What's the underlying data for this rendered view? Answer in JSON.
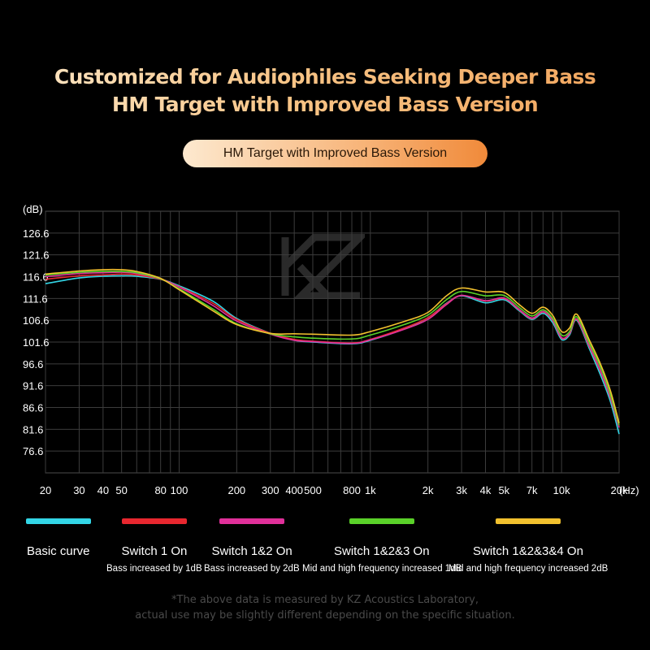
{
  "headline": {
    "line1": "Customized for Audiophiles Seeking Deeper Bass",
    "line2": "HM Target with Improved Bass Version"
  },
  "pill_label": "HM Target with Improved Bass Version",
  "chart_data": {
    "type": "line",
    "title": "",
    "ylabel": "(dB)",
    "xlabel": "(Hz)",
    "x_scale": "log",
    "xlim": [
      20,
      20000
    ],
    "ylim": [
      71.6,
      131.6
    ],
    "grid": true,
    "y_ticks": [
      "126.6",
      "121.6",
      "116.6",
      "111.6",
      "106.6",
      "101.6",
      "96.6",
      "91.6",
      "86.6",
      "81.6",
      "76.6"
    ],
    "y_tick_values": [
      126.6,
      121.6,
      116.6,
      111.6,
      106.6,
      101.6,
      96.6,
      91.6,
      86.6,
      81.6,
      76.6
    ],
    "x_ticks": [
      "20",
      "30",
      "40",
      "50",
      "80",
      "100",
      "200",
      "300",
      "400",
      "500",
      "800",
      "1k",
      "2k",
      "3k",
      "4k",
      "5k",
      "7k",
      "10k",
      "20k"
    ],
    "x_tick_values": [
      20,
      30,
      40,
      50,
      80,
      100,
      200,
      300,
      400,
      500,
      800,
      1000,
      2000,
      3000,
      4000,
      5000,
      7000,
      10000,
      20000
    ],
    "x": [
      20,
      30,
      40,
      50,
      60,
      80,
      100,
      150,
      200,
      300,
      400,
      500,
      800,
      1000,
      1500,
      2000,
      2500,
      3000,
      4000,
      5000,
      6000,
      7000,
      8000,
      9000,
      10000,
      11000,
      12000,
      14000,
      16000,
      18000,
      20000
    ],
    "series": [
      {
        "color": "#33d6e6",
        "values": [
          115.0,
          116.3,
          116.7,
          116.8,
          116.7,
          116.0,
          114.5,
          111.0,
          107.0,
          103.6,
          102.0,
          101.6,
          101.2,
          102.0,
          104.6,
          107.2,
          110.5,
          112.2,
          110.6,
          111.3,
          108.8,
          106.8,
          108.2,
          106.0,
          102.2,
          103.2,
          106.6,
          100.0,
          94.0,
          88.0,
          80.5
        ]
      },
      {
        "color": "#e8272f",
        "values": [
          116.0,
          116.8,
          117.0,
          117.2,
          117.0,
          116.0,
          114.3,
          110.5,
          106.8,
          103.6,
          102.2,
          101.8,
          101.4,
          102.2,
          104.8,
          107.2,
          110.4,
          112.3,
          111.0,
          111.6,
          109.0,
          107.0,
          108.5,
          106.5,
          102.5,
          103.5,
          106.8,
          100.5,
          94.8,
          88.8,
          82.0
        ]
      },
      {
        "color": "#e0309a",
        "values": [
          116.6,
          117.3,
          117.5,
          117.6,
          117.3,
          116.1,
          114.2,
          110.0,
          106.4,
          103.4,
          102.0,
          101.7,
          101.3,
          102.1,
          104.5,
          106.8,
          110.2,
          112.3,
          111.1,
          111.7,
          109.1,
          107.1,
          108.6,
          106.6,
          102.6,
          103.6,
          106.9,
          100.7,
          95.0,
          89.0,
          82.0
        ]
      },
      {
        "color": "#5ad129",
        "values": [
          117.0,
          117.6,
          117.8,
          117.8,
          117.5,
          116.1,
          113.8,
          109.2,
          105.8,
          103.5,
          102.8,
          102.5,
          102.3,
          103.2,
          105.6,
          107.8,
          111.3,
          113.2,
          112.2,
          112.3,
          109.6,
          107.6,
          109.0,
          107.0,
          103.2,
          104.0,
          107.4,
          101.3,
          95.8,
          89.6,
          82.5
        ]
      },
      {
        "color": "#f2c12e",
        "values": [
          117.2,
          117.9,
          118.2,
          118.2,
          117.8,
          116.2,
          113.6,
          108.8,
          105.6,
          103.6,
          103.5,
          103.4,
          103.2,
          104.0,
          106.3,
          108.4,
          112.2,
          114.0,
          113.1,
          113.0,
          110.2,
          108.2,
          109.6,
          107.7,
          104.0,
          104.8,
          108.0,
          102.0,
          96.5,
          90.5,
          83.0
        ]
      }
    ]
  },
  "legend": [
    {
      "color": "#33d6e6",
      "label": "Basic curve",
      "sub": ""
    },
    {
      "color": "#e8272f",
      "label": "Switch 1 On",
      "sub": "Bass increased by 1dB"
    },
    {
      "color": "#e0309a",
      "label": "Switch 1&2 On",
      "sub": "Bass increased by 2dB"
    },
    {
      "color": "#5ad129",
      "label": "Switch 1&2&3 On",
      "sub": "Mid and high frequency increased 1dB"
    },
    {
      "color": "#f2c12e",
      "label": "Switch 1&2&3&4 On",
      "sub": "Mid and high frequency increased 2dB"
    }
  ],
  "footnote": {
    "line1": "*The above data is measured by KZ Acoustics Laboratory,",
    "line2": "actual use may be slightly different depending on the specific situation."
  }
}
